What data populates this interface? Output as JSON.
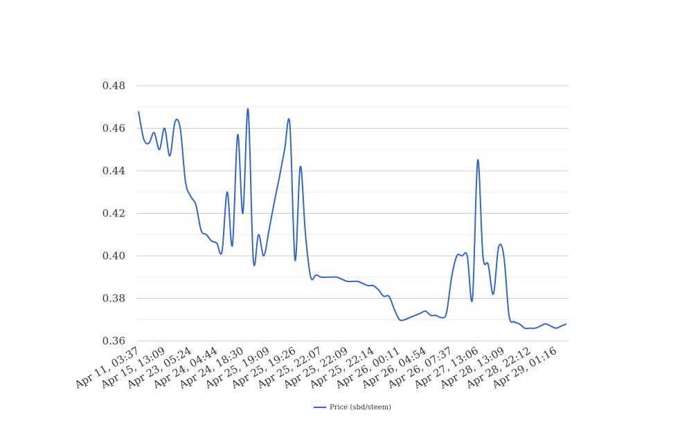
{
  "chart_data": {
    "type": "line",
    "categories": [
      "Apr 11, 03:37",
      null,
      null,
      null,
      null,
      "Apr 15, 13:09",
      null,
      null,
      null,
      null,
      "Apr 23, 05:24",
      null,
      null,
      null,
      null,
      "Apr 24, 04:44",
      null,
      null,
      null,
      null,
      "Apr 24, 18:30",
      null,
      null,
      null,
      null,
      "Apr 25, 19:09",
      null,
      null,
      null,
      null,
      "Apr 25, 19:26",
      null,
      null,
      null,
      null,
      "Apr 25, 22:07",
      null,
      null,
      null,
      null,
      "Apr 25, 22:09",
      null,
      null,
      null,
      null,
      "Apr 25, 22:14",
      null,
      null,
      null,
      null,
      "Apr 26, 00:11",
      null,
      null,
      null,
      null,
      "Apr 26, 04:54",
      null,
      null,
      null,
      null,
      "Apr 26, 07:37",
      null,
      null,
      null,
      null,
      "Apr 27, 13:06",
      null,
      null,
      null,
      null,
      "Apr 28, 13:09",
      null,
      null,
      null,
      null,
      "Apr 28, 22:12",
      null,
      null,
      null,
      null,
      "Apr 29, 01:16",
      null,
      null
    ],
    "series": [
      {
        "name": "Price (sbd/steem)",
        "color": "#3366cc",
        "values": [
          0.468,
          0.455,
          0.453,
          0.458,
          0.45,
          0.46,
          0.447,
          0.463,
          0.46,
          0.435,
          0.428,
          0.424,
          0.412,
          0.41,
          0.407,
          0.406,
          0.402,
          0.43,
          0.405,
          0.457,
          0.42,
          0.469,
          0.398,
          0.41,
          0.4,
          0.412,
          0.425,
          0.437,
          0.45,
          0.462,
          0.398,
          0.442,
          0.41,
          0.39,
          0.391,
          0.39,
          0.39,
          0.39,
          0.39,
          0.389,
          0.388,
          0.388,
          0.388,
          0.387,
          0.386,
          0.386,
          0.384,
          0.381,
          0.381,
          0.375,
          0.37,
          0.37,
          0.371,
          0.372,
          0.373,
          0.374,
          0.372,
          0.372,
          0.371,
          0.373,
          0.39,
          0.4,
          0.4,
          0.4,
          0.38,
          0.445,
          0.4,
          0.396,
          0.382,
          0.404,
          0.4,
          0.372,
          0.369,
          0.368,
          0.366,
          0.366,
          0.366,
          0.367,
          0.368,
          0.367,
          0.366,
          0.367,
          0.368
        ]
      }
    ],
    "ylim": [
      0.36,
      0.48
    ],
    "yticks": [
      0.36,
      0.38,
      0.4,
      0.42,
      0.44,
      0.46,
      0.48
    ],
    "grid": true,
    "legend": "bottom"
  }
}
